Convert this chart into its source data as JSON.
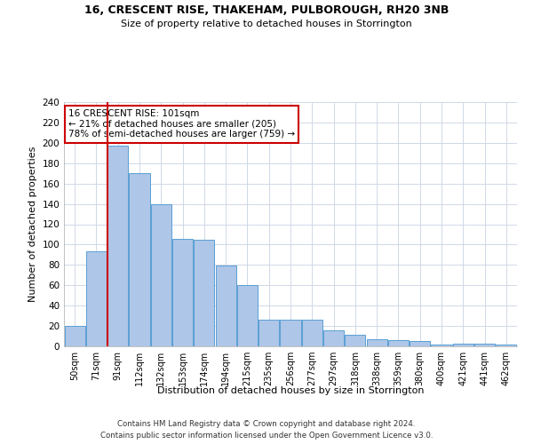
{
  "title_line1": "16, CRESCENT RISE, THAKEHAM, PULBOROUGH, RH20 3NB",
  "title_line2": "Size of property relative to detached houses in Storrington",
  "xlabel": "Distribution of detached houses by size in Storrington",
  "ylabel": "Number of detached properties",
  "bar_labels": [
    "50sqm",
    "71sqm",
    "91sqm",
    "112sqm",
    "132sqm",
    "153sqm",
    "174sqm",
    "194sqm",
    "215sqm",
    "235sqm",
    "256sqm",
    "277sqm",
    "297sqm",
    "318sqm",
    "338sqm",
    "359sqm",
    "380sqm",
    "400sqm",
    "421sqm",
    "441sqm",
    "462sqm"
  ],
  "bar_values": [
    20,
    93,
    197,
    170,
    140,
    106,
    105,
    79,
    60,
    26,
    26,
    26,
    16,
    11,
    7,
    6,
    5,
    2,
    3,
    3,
    2
  ],
  "bar_color": "#aec6e8",
  "bar_edge_color": "#5a9fd4",
  "red_line_x": 1.5,
  "annotation_title": "16 CRESCENT RISE: 101sqm",
  "annotation_line2": "← 21% of detached houses are smaller (205)",
  "annotation_line3": "78% of semi-detached houses are larger (759) →",
  "annotation_box_color": "#ffffff",
  "annotation_box_edge_color": "#cc0000",
  "red_line_color": "#cc0000",
  "grid_color": "#d0d8e8",
  "background_color": "#ffffff",
  "footer_line1": "Contains HM Land Registry data © Crown copyright and database right 2024.",
  "footer_line2": "Contains public sector information licensed under the Open Government Licence v3.0.",
  "ylim": [
    0,
    240
  ],
  "yticks": [
    0,
    20,
    40,
    60,
    80,
    100,
    120,
    140,
    160,
    180,
    200,
    220,
    240
  ]
}
